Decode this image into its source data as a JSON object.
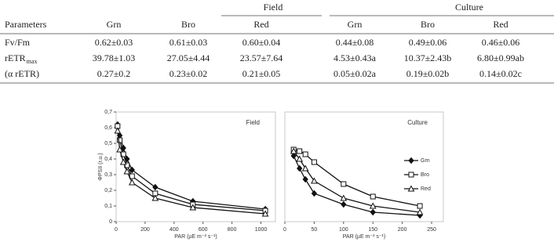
{
  "table": {
    "groups": [
      "Field",
      "Culture"
    ],
    "columns": [
      "Parameters",
      "Grn",
      "Bro",
      "Red",
      "Grn",
      "Bro",
      "Red"
    ],
    "rows": [
      {
        "label": "Fv/Fm",
        "cells": [
          "0.62±0.03",
          "0.61±0.03",
          "0.60±0.04",
          "0.44±0.08",
          "0.49±0.06",
          "0.46±0.06"
        ]
      },
      {
        "label": "rETR",
        "label_sub": "max",
        "cells": [
          "39.78±1.03",
          "27.05±4.44",
          "23.57±7.64",
          "4.53±0.43a",
          "10.37±2.43b",
          "6.80±0.99ab"
        ]
      },
      {
        "label": "(α rETR)",
        "cells": [
          "0.27±0.2",
          "0.23±0.02",
          "0.21±0.05",
          "0.05±0.02a",
          "0.19±0.02b",
          "0.14±0.02c"
        ]
      }
    ]
  },
  "chart_data": [
    {
      "type": "line",
      "title": "Field",
      "ylabel": "ΦPSII (r.u.)",
      "xlabel": "PAR (µE m⁻² s⁻¹)",
      "x": [
        10,
        25,
        50,
        75,
        110,
        270,
        530,
        1030
      ],
      "series": [
        {
          "color": "#111",
          "marker": "diamond",
          "filled": true,
          "values": [
            0.62,
            0.55,
            0.47,
            0.4,
            0.33,
            0.22,
            0.13,
            0.08
          ]
        },
        {
          "color": "#111",
          "marker": "square",
          "filled": false,
          "values": [
            0.61,
            0.52,
            0.43,
            0.36,
            0.29,
            0.18,
            0.11,
            0.07
          ]
        },
        {
          "color": "#111",
          "marker": "triangle",
          "filled": false,
          "values": [
            0.58,
            0.46,
            0.38,
            0.32,
            0.25,
            0.15,
            0.09,
            0.05
          ]
        }
      ],
      "xlim": [
        0,
        1100
      ],
      "xticks": [
        0,
        200,
        400,
        600,
        800,
        1000
      ],
      "ylim": [
        0,
        0.7
      ],
      "yticks": [
        0,
        {
          "value": 0.1,
          "label": "0,1"
        },
        {
          "value": 0.2,
          "label": "0,2"
        },
        {
          "value": 0.3,
          "label": "0,3"
        },
        {
          "value": 0.4,
          "label": "0,4"
        },
        {
          "value": 0.5,
          "label": "0,5"
        },
        {
          "value": 0.6,
          "label": "0,6"
        },
        {
          "value": 0.7,
          "label": "0,7"
        }
      ],
      "legend": false
    },
    {
      "type": "line",
      "title": "Culture",
      "xlabel": "PAR (µE m⁻² s⁻¹)",
      "x": [
        15,
        25,
        35,
        50,
        100,
        150,
        230
      ],
      "series": [
        {
          "name": "Grn",
          "color": "#111",
          "marker": "diamond",
          "filled": true,
          "values": [
            0.42,
            0.34,
            0.27,
            0.18,
            0.11,
            0.06,
            0.04
          ]
        },
        {
          "name": "Bro",
          "color": "#111",
          "marker": "square",
          "filled": false,
          "values": [
            0.46,
            0.45,
            0.43,
            0.38,
            0.24,
            0.16,
            0.1
          ]
        },
        {
          "name": "Red",
          "color": "#111",
          "marker": "triangle",
          "filled": false,
          "values": [
            0.45,
            0.4,
            0.34,
            0.26,
            0.15,
            0.1,
            0.06
          ]
        }
      ],
      "xlim": [
        0,
        270
      ],
      "xticks": [
        0,
        50,
        100,
        150,
        200,
        250
      ],
      "ylim": [
        0,
        0.7
      ],
      "legend": true
    }
  ]
}
